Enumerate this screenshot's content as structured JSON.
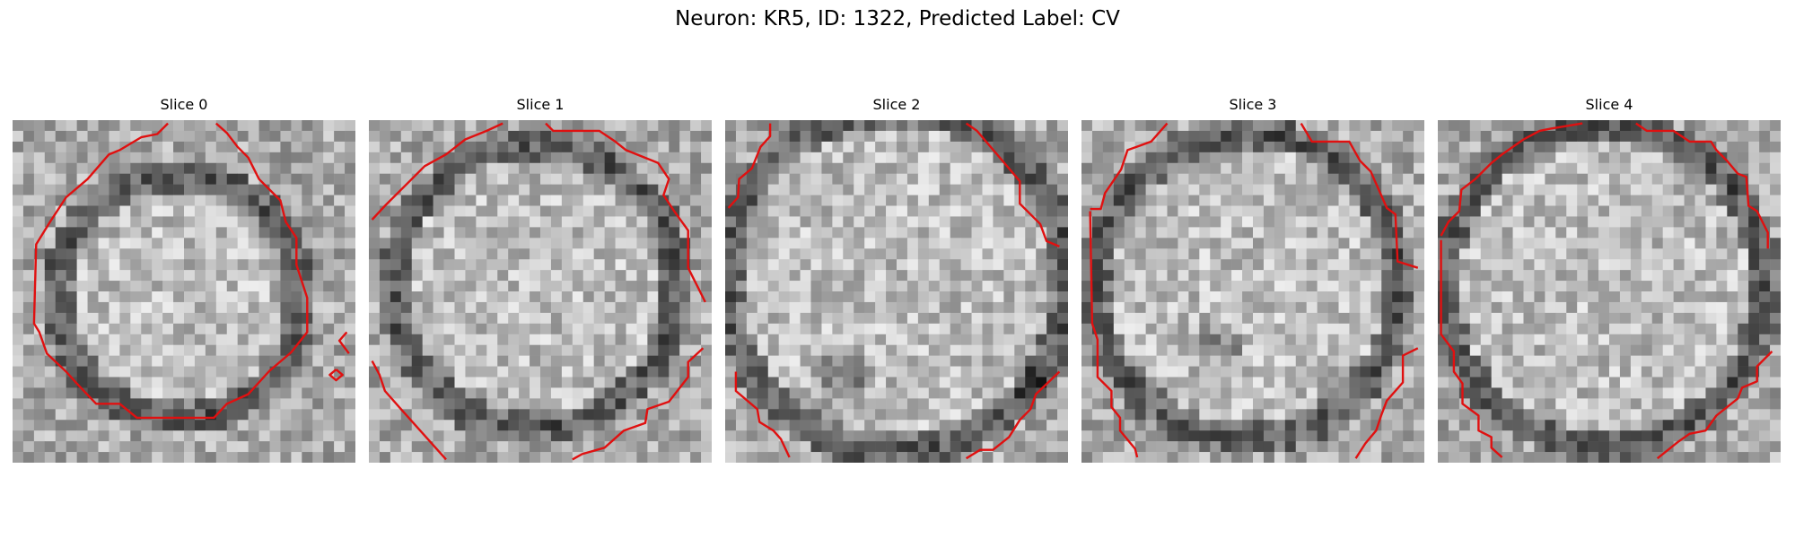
{
  "figure": {
    "title": "Neuron: KR5, ID: 1322, Predicted Label: CV"
  },
  "colors": {
    "contour": "#e01010",
    "background": "#ffffff"
  },
  "panels": [
    {
      "title": "Slice 0"
    },
    {
      "title": "Slice 1"
    },
    {
      "title": "Slice 2"
    },
    {
      "title": "Slice 3"
    },
    {
      "title": "Slice 4"
    }
  ]
}
